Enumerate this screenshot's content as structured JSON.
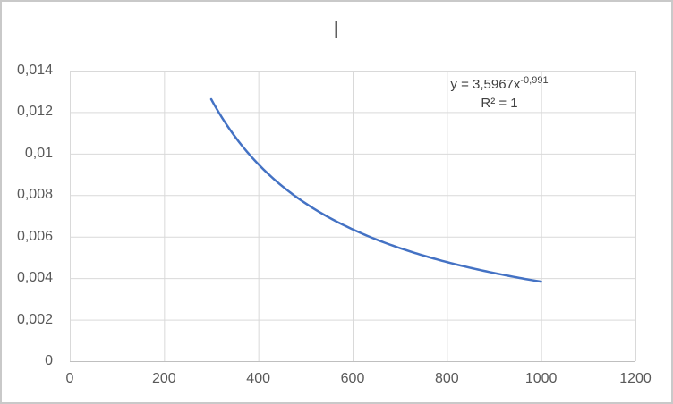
{
  "chart_data": {
    "type": "line",
    "title": "I",
    "xlabel": "",
    "ylabel": "",
    "x_range": [
      0,
      1200
    ],
    "y_range": [
      0,
      0.014
    ],
    "grid": true,
    "legend": "none",
    "x_ticks": {
      "values": [
        0,
        200,
        400,
        600,
        800,
        1000,
        1200
      ],
      "labels": [
        "0",
        "200",
        "400",
        "600",
        "800",
        "1000",
        "1200"
      ]
    },
    "y_ticks": {
      "values": [
        0,
        0.002,
        0.004,
        0.006,
        0.008,
        0.01,
        0.012,
        0.014
      ],
      "labels": [
        "0",
        "0,002",
        "0,004",
        "0,006",
        "0,008",
        "0,01",
        "0,012",
        "0,014"
      ]
    },
    "series": [
      {
        "name": "power trendline",
        "curve": "power",
        "a": 3.5967,
        "b": -0.991,
        "x_start": 300,
        "x_end": 1000,
        "color": "#4472C4",
        "stroke_width": 2.5,
        "points": {
          "x": [
            300,
            400,
            500,
            600,
            700,
            800,
            900,
            1000
          ],
          "y": [
            0.01262,
            0.00949,
            0.00761,
            0.00635,
            0.00545,
            0.00477,
            0.00425,
            0.00383
          ]
        }
      }
    ],
    "annotation": {
      "equation_base": "y = 3,5967x",
      "equation_exponent": "-0,991",
      "r2": "R² = 1"
    },
    "colors": {
      "series": "#4472C4",
      "gridline": "#D9D9D9",
      "axis_line": "#BFBFBF",
      "tick_text": "#595959",
      "annotation_text": "#404040"
    },
    "decimal_separator": ","
  }
}
